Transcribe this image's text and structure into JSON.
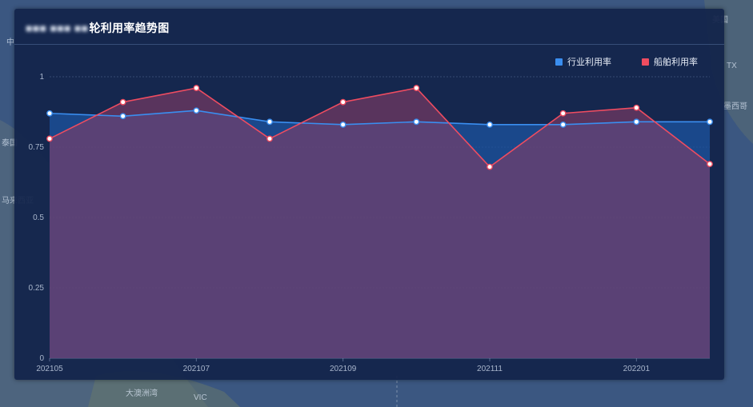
{
  "title_obscured": "■■■ ■■■ ■■",
  "title": "轮利用率趋势图",
  "legend": [
    {
      "name": "行业利用率",
      "color": "#3a8ef0"
    },
    {
      "name": "船舶利用率",
      "color": "#ee4c60"
    }
  ],
  "map_labels": [
    "马来西亚",
    "VIC",
    "大澳洲湾",
    "中",
    "泰国",
    "墨西哥",
    "TX",
    "美国"
  ],
  "chart_data": {
    "type": "area",
    "x": [
      "202105",
      "202106",
      "202107",
      "202108",
      "202109",
      "202110",
      "202111",
      "202112",
      "202201",
      "202202"
    ],
    "xtick_labels": [
      "202105",
      "202107",
      "202109",
      "202111",
      "202201"
    ],
    "ytick_labels": [
      "0",
      "0.25",
      "0.5",
      "0.75",
      "1"
    ],
    "ylim": [
      0,
      1
    ],
    "grid": true,
    "legend_position": "top-right",
    "series": [
      {
        "name": "行业利用率",
        "color": "#3a8ef0",
        "values": [
          0.87,
          0.86,
          0.88,
          0.84,
          0.83,
          0.84,
          0.83,
          0.83,
          0.84,
          0.84
        ]
      },
      {
        "name": "船舶利用率",
        "color": "#ee4c60",
        "values": [
          0.78,
          0.91,
          0.96,
          0.78,
          0.91,
          0.96,
          0.68,
          0.87,
          0.89,
          0.69
        ]
      }
    ]
  }
}
